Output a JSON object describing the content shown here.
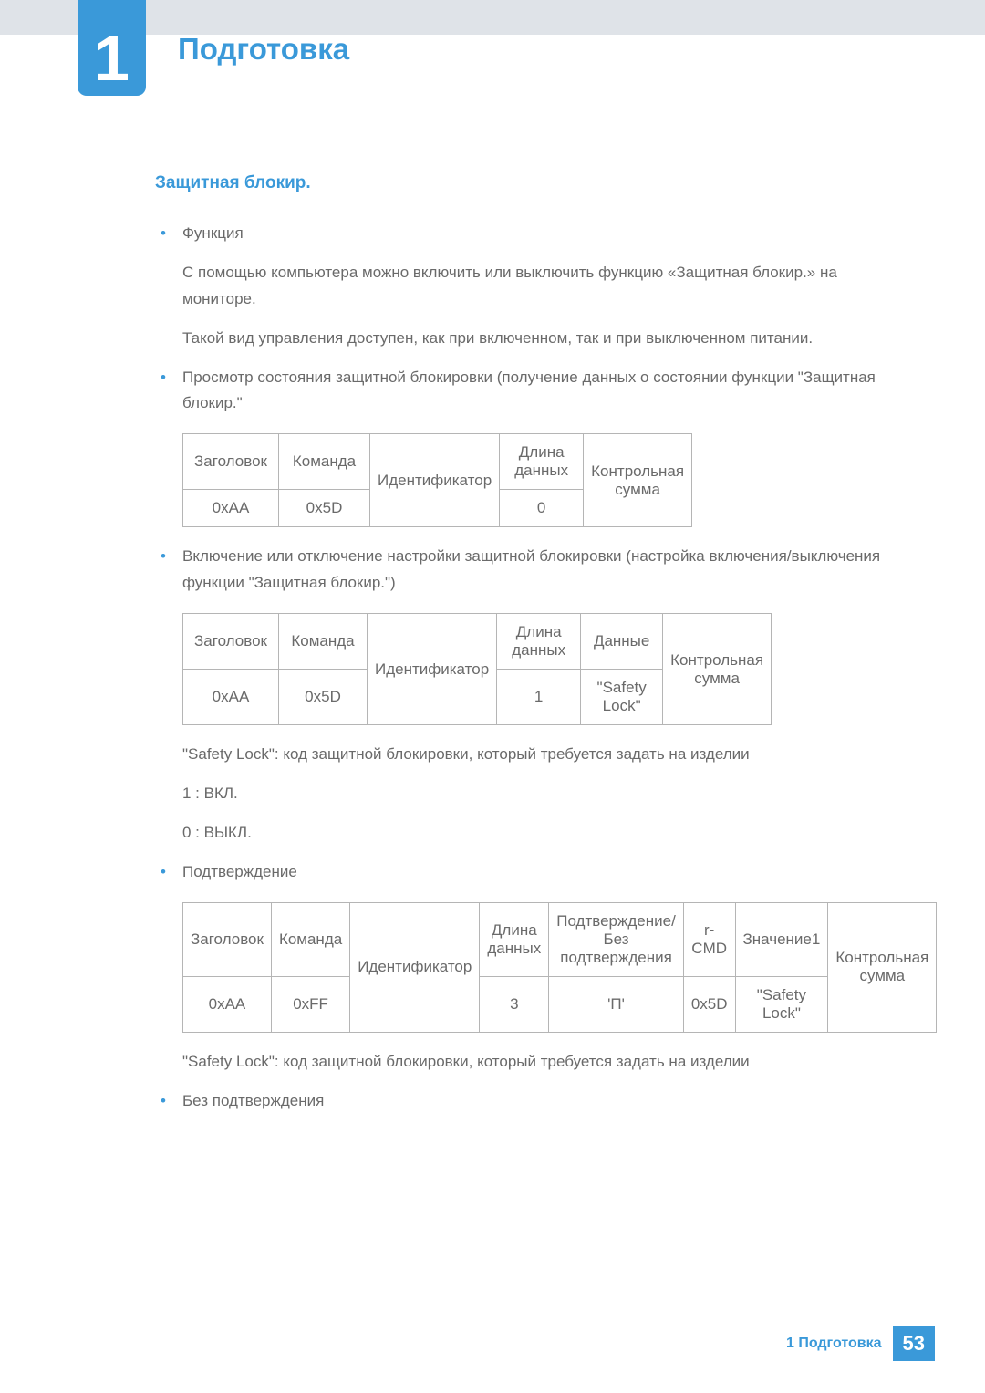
{
  "chapter": {
    "number": "1",
    "title": "Подготовка"
  },
  "section": {
    "heading": "Защитная блокир."
  },
  "para": {
    "func": "Функция",
    "desc1": "С помощью компьютера можно включить или выключить функцию «Защитная блокир.» на мониторе.",
    "desc2": "Такой вид управления доступен, как при включенном, так и при выключенном питании.",
    "view": "Просмотр состояния защитной блокировки (получение данных о состоянии функции \"Защитная блокир.\"",
    "set": "Включение или отключение настройки защитной блокировки (настройка включения/выключения функции \"Защитная блокир.\")",
    "note1": "\"Safety Lock\": код защитной блокировки, который требуется задать на изделии",
    "v1": "1 : ВКЛ.",
    "v0": "0 : ВЫКЛ.",
    "ack": "Подтверждение",
    "note2": "\"Safety Lock\": код защитной блокировки, который требуется задать на изделии",
    "nak": "Без подтверждения"
  },
  "t1": {
    "h1": "Заголовок",
    "h2": "Команда",
    "h3": "Идентификатор",
    "h4": "Длина данных",
    "h5": "Контрольная сумма",
    "r1": "0xAA",
    "r2": "0x5D",
    "r4": "0"
  },
  "t2": {
    "h1": "Заголовок",
    "h2": "Команда",
    "h3": "Идентификатор",
    "h4": "Длина данных",
    "h5": "Данные",
    "h6": "Контрольная сумма",
    "r1": "0xAA",
    "r2": "0x5D",
    "r4": "1",
    "r5": "\"Safety Lock\""
  },
  "t3": {
    "h1": "Заголовок",
    "h2": "Команда",
    "h3": "Идентификатор",
    "h4": "Длина данных",
    "h5": "Подтверждение/Без подтверждения",
    "h6": "r-CMD",
    "h7": "Значение1",
    "h8": "Контрольная сумма",
    "r1": "0xAA",
    "r2": "0xFF",
    "r4": "3",
    "r5": "'П'",
    "r6": "0x5D",
    "r7": "\"Safety Lock\""
  },
  "footer": {
    "text": "1 Подготовка",
    "page": "53"
  }
}
